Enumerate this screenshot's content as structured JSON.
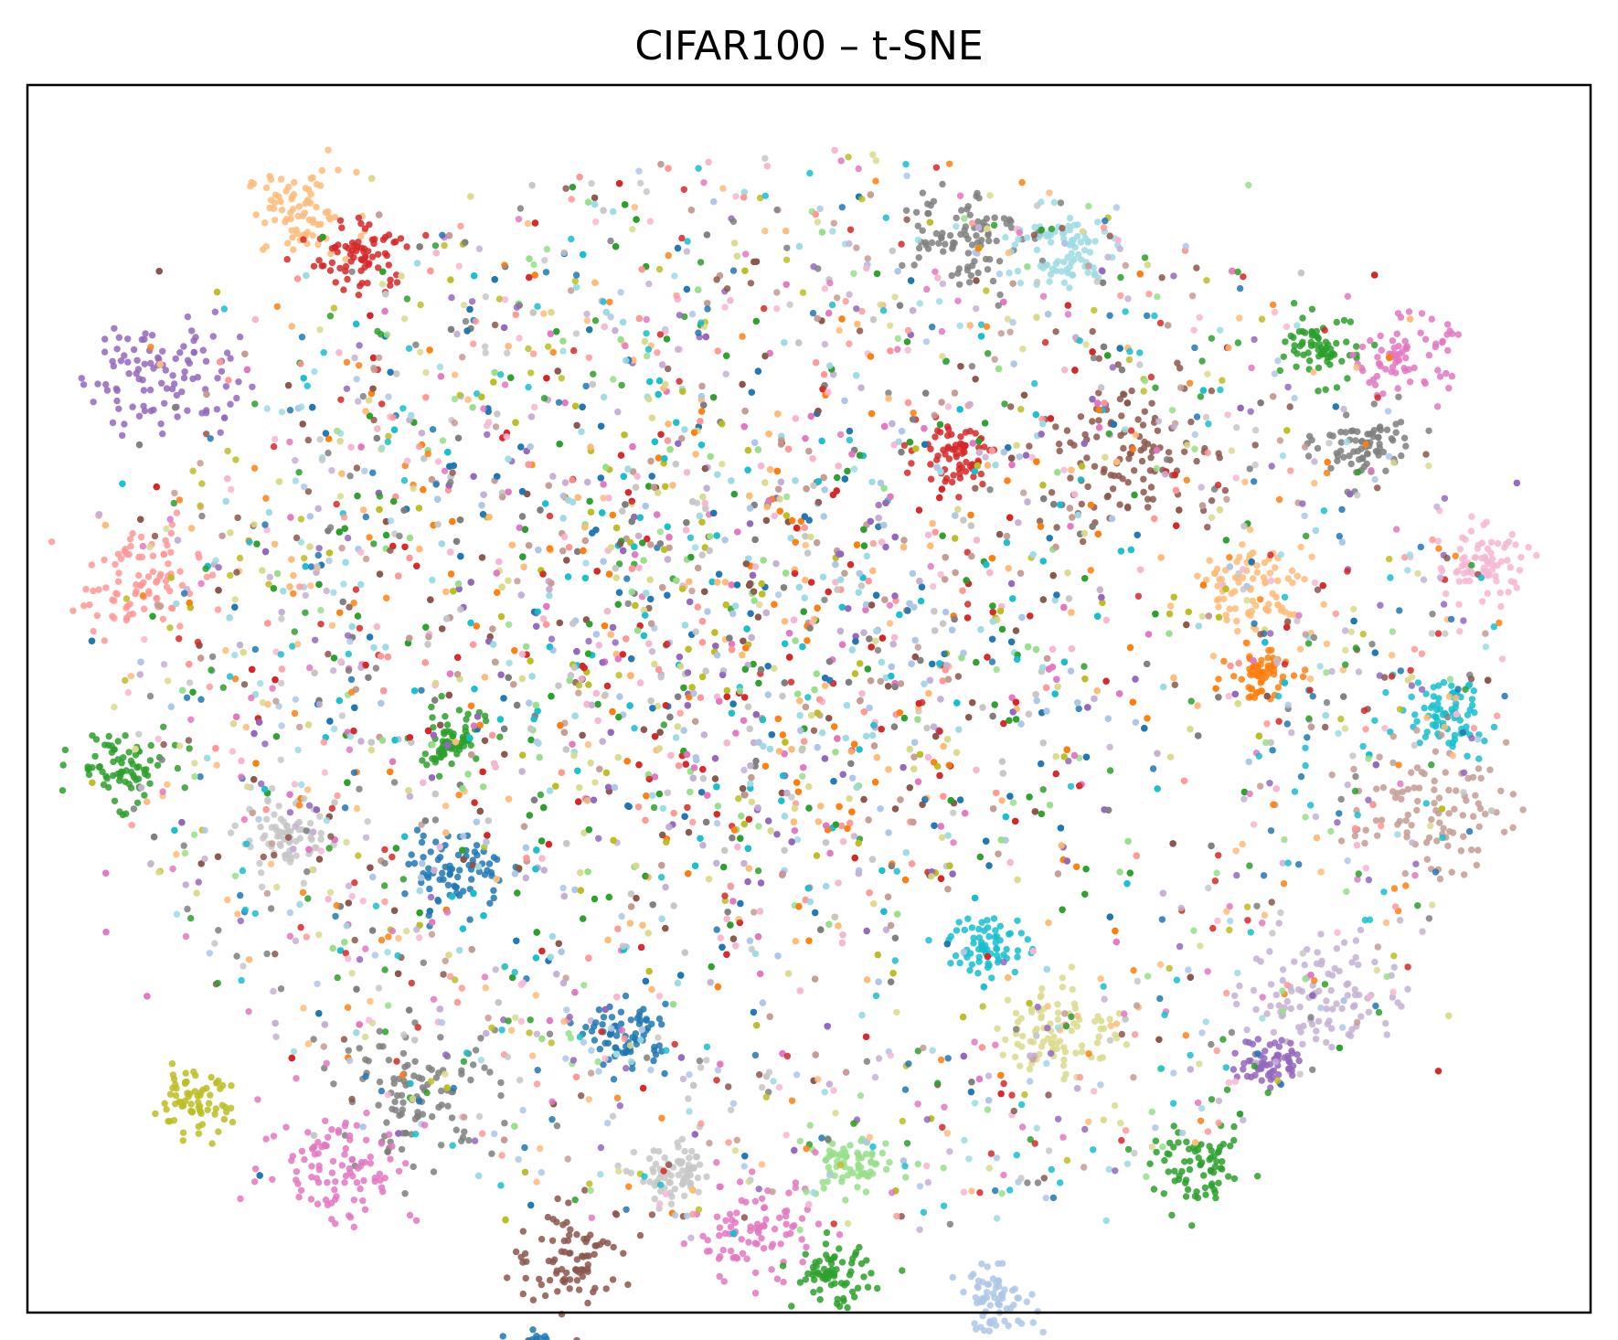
{
  "chart_data": {
    "type": "scatter",
    "title": "CIFAR100 – t-SNE",
    "xlabel": "",
    "ylabel": "",
    "xlim": [
      -100,
      100
    ],
    "ylim": [
      -100,
      100
    ],
    "ticks_shown": false,
    "grid": false,
    "legend": "none",
    "marker_alpha": 0.85,
    "palette": [
      "#1f77b4",
      "#ff7f0e",
      "#2ca02c",
      "#d62728",
      "#9467bd",
      "#8c564b",
      "#e377c2",
      "#7f7f7f",
      "#bcbd22",
      "#17becf",
      "#aec7e8",
      "#ffbb78",
      "#98df8a",
      "#ff9896",
      "#c5b0d5",
      "#c49c94",
      "#f7b6d2",
      "#c7c7c7",
      "#dbdb8d",
      "#9edae5"
    ],
    "cluster_summary": [
      {
        "color": "#ffbb78",
        "center": [
          -65,
          79
        ],
        "spread": 3.5
      },
      {
        "color": "#d62728",
        "center": [
          -57,
          72
        ],
        "spread": 3
      },
      {
        "color": "#9467bd",
        "center": [
          -83,
          53
        ],
        "spread": 5
      },
      {
        "color": "#ff9896",
        "center": [
          -86,
          19
        ],
        "spread": 4
      },
      {
        "color": "#2ca02c",
        "center": [
          -88,
          -11
        ],
        "spread": 3
      },
      {
        "color": "#2ca02c",
        "center": [
          -46,
          -7
        ],
        "spread": 2.5
      },
      {
        "color": "#1f77b4",
        "center": [
          -45,
          -28
        ],
        "spread": 3
      },
      {
        "color": "#c7c7c7",
        "center": [
          -67,
          -23
        ],
        "spread": 3
      },
      {
        "color": "#bcbd22",
        "center": [
          -79,
          -66
        ],
        "spread": 2.5
      },
      {
        "color": "#7f7f7f",
        "center": [
          -50,
          -64
        ],
        "spread": 5
      },
      {
        "color": "#e377c2",
        "center": [
          -60,
          -76
        ],
        "spread": 5
      },
      {
        "color": "#8c564b",
        "center": [
          -30,
          -91
        ],
        "spread": 4
      },
      {
        "color": "#1f77b4",
        "center": [
          -35,
          -107
        ],
        "spread": 2
      },
      {
        "color": "#1f77b4",
        "center": [
          -23,
          -55
        ],
        "spread": 2.5
      },
      {
        "color": "#e377c2",
        "center": [
          -7,
          -87
        ],
        "spread": 4
      },
      {
        "color": "#2ca02c",
        "center": [
          3,
          -94
        ],
        "spread": 2.5
      },
      {
        "color": "#c7c7c7",
        "center": [
          -17,
          -78
        ],
        "spread": 2.5
      },
      {
        "color": "#98df8a",
        "center": [
          5,
          -76
        ],
        "spread": 2.5
      },
      {
        "color": "#aec7e8",
        "center": [
          24,
          -98
        ],
        "spread": 2.5
      },
      {
        "color": "#17becf",
        "center": [
          23,
          -40
        ],
        "spread": 2.5
      },
      {
        "color": "#dbdb8d",
        "center": [
          32,
          -54
        ],
        "spread": 4
      },
      {
        "color": "#2ca02c",
        "center": [
          50,
          -77
        ],
        "spread": 3
      },
      {
        "color": "#8c564b",
        "center": [
          40,
          40
        ],
        "spread": 6
      },
      {
        "color": "#d62728",
        "center": [
          19,
          40
        ],
        "spread": 2.5
      },
      {
        "color": "#7f7f7f",
        "center": [
          19,
          76
        ],
        "spread": 4
      },
      {
        "color": "#9edae5",
        "center": [
          32,
          73
        ],
        "spread": 3.5
      },
      {
        "color": "#2ca02c",
        "center": [
          66,
          57
        ],
        "spread": 2.5
      },
      {
        "color": "#e377c2",
        "center": [
          76,
          56
        ],
        "spread": 3
      },
      {
        "color": "#7f7f7f",
        "center": [
          71,
          41
        ],
        "spread": 3
      },
      {
        "color": "#f7b6d2",
        "center": [
          86,
          22
        ],
        "spread": 3
      },
      {
        "color": "#ffbb78",
        "center": [
          57,
          18
        ],
        "spread": 4
      },
      {
        "color": "#ff7f0e",
        "center": [
          58,
          4
        ],
        "spread": 2
      },
      {
        "color": "#17becf",
        "center": [
          81,
          -3
        ],
        "spread": 3
      },
      {
        "color": "#c49c94",
        "center": [
          79,
          -18
        ],
        "spread": 5
      },
      {
        "color": "#c5b0d5",
        "center": [
          66,
          -48
        ],
        "spread": 5
      },
      {
        "color": "#9467bd",
        "center": [
          59,
          -59
        ],
        "spread": 2
      }
    ]
  }
}
